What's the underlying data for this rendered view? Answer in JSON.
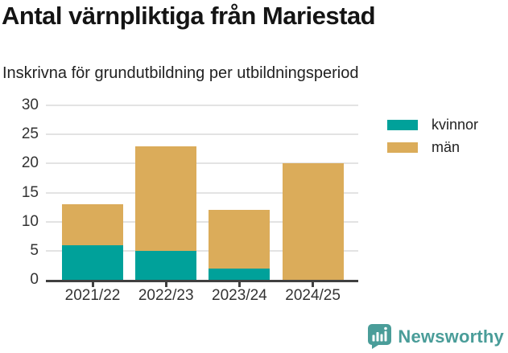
{
  "header": {
    "title": "Antal värnpliktiga från Mariestad",
    "subtitle": "Inskrivna för grundutbildning per utbildningsperiod"
  },
  "chart_data": {
    "type": "bar",
    "stacked": true,
    "title": "Antal värnpliktiga från Mariestad",
    "subtitle": "Inskrivna för grundutbildning per utbildningsperiod",
    "categories": [
      "2021/22",
      "2022/23",
      "2023/24",
      "2024/25"
    ],
    "series": [
      {
        "name": "kvinnor",
        "color": "#00a19a",
        "values": [
          6,
          5,
          2,
          0
        ]
      },
      {
        "name": "män",
        "color": "#dbac5a",
        "values": [
          7,
          18,
          10,
          20
        ]
      }
    ],
    "totals": [
      13,
      23,
      12,
      20
    ],
    "xlabel": "",
    "ylabel": "",
    "ylim": [
      0,
      30
    ],
    "yticks": [
      0,
      5,
      10,
      15,
      20,
      25,
      30
    ],
    "grid": "horizontal",
    "legend_position": "right-top"
  },
  "branding": {
    "logo_text": "Newsworthy",
    "logo_color": "#4a9d99",
    "logo_icon": "bar-chart-speech-bubble-icon"
  }
}
